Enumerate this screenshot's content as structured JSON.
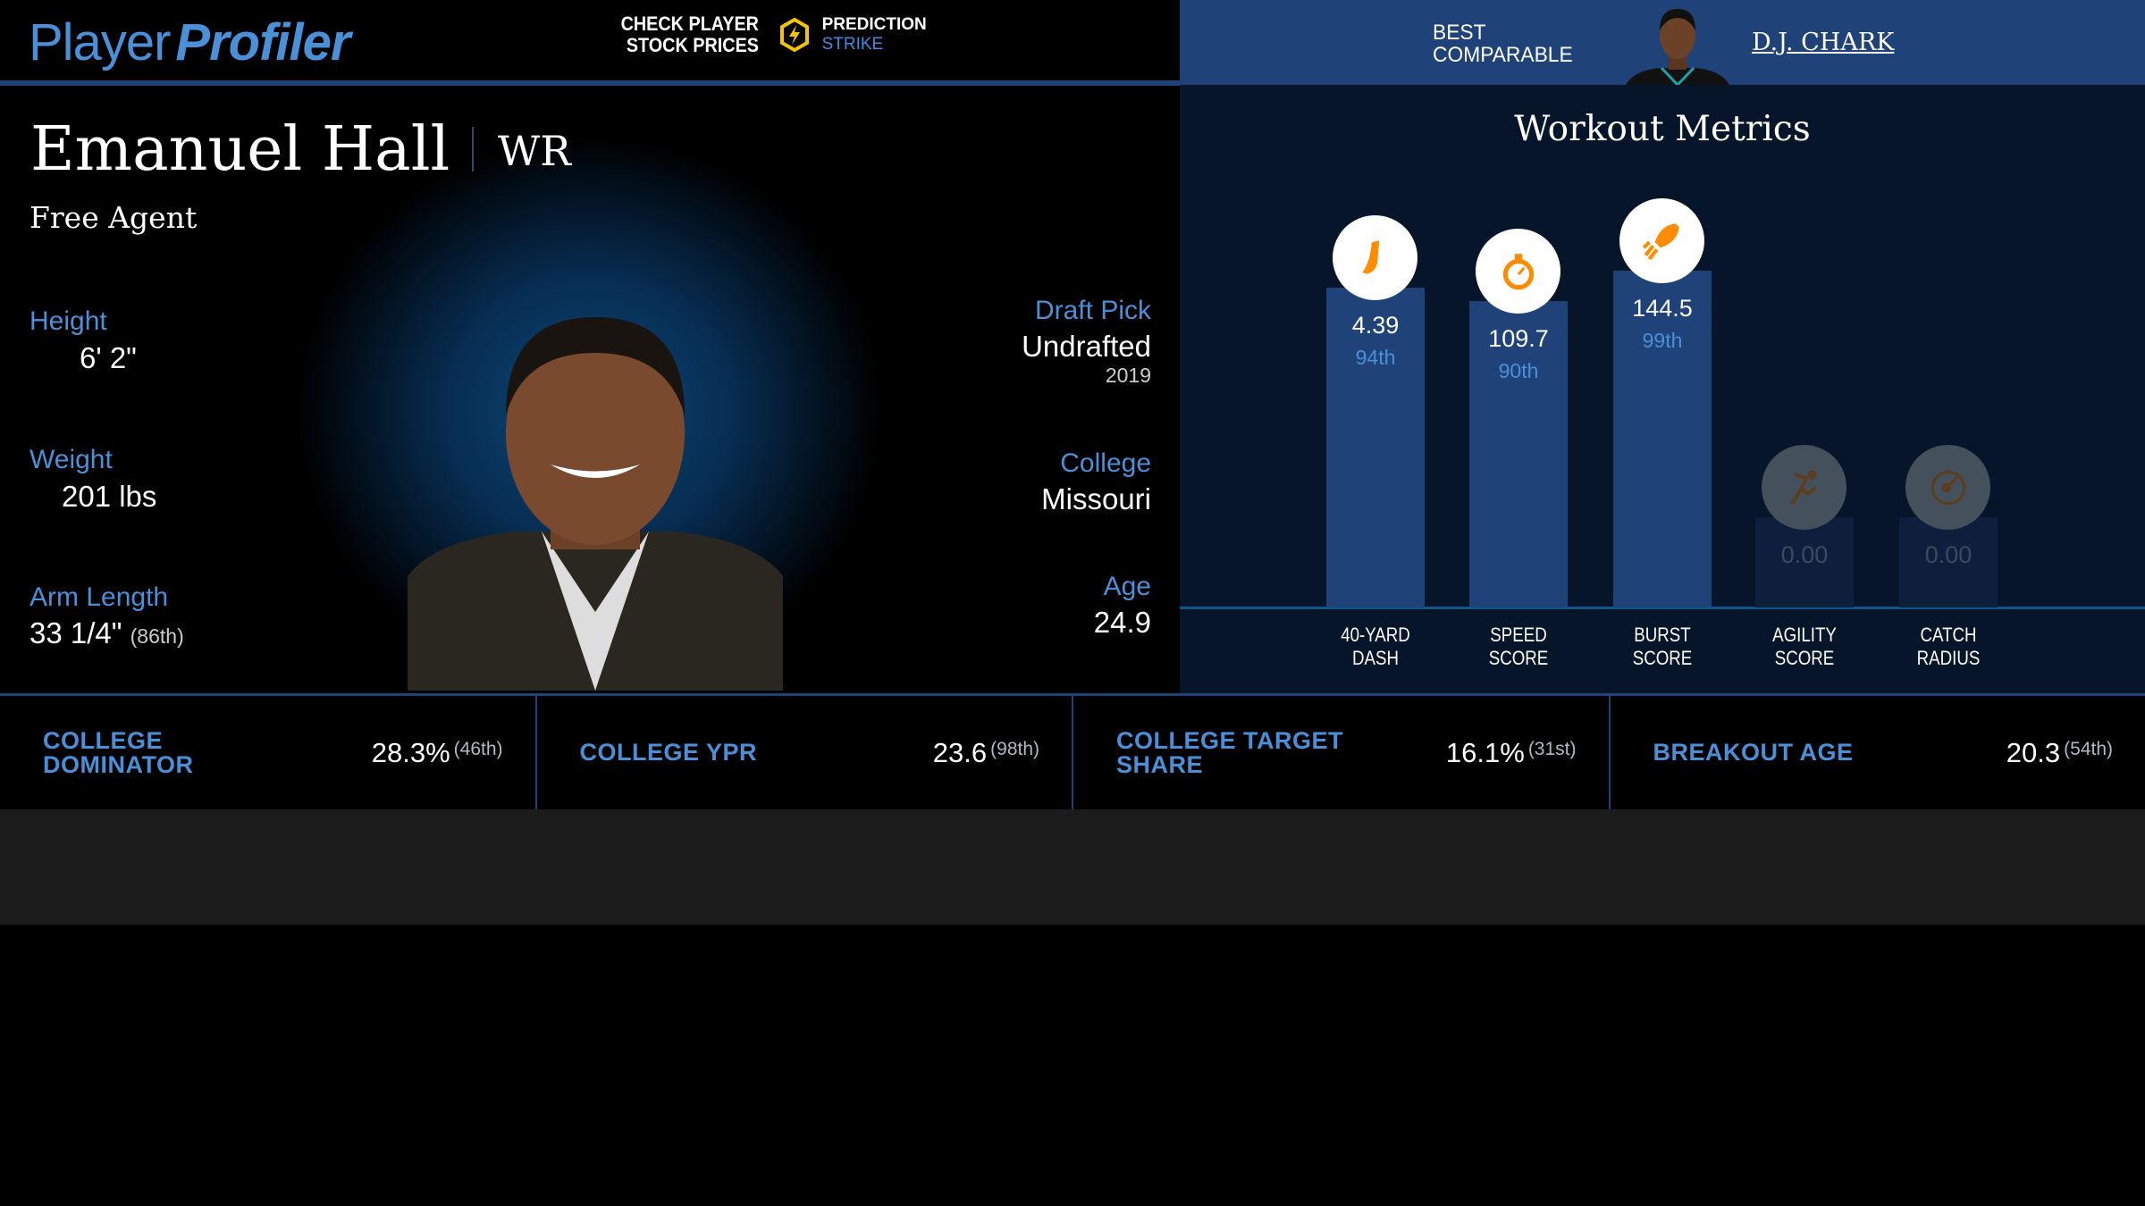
{
  "header": {
    "logo_player": "Player",
    "logo_profiler": "Profiler",
    "promo_line1": "CHECK PLAYER",
    "promo_line2": "STOCK PRICES",
    "promo_brand1": "PREDICTION",
    "promo_brand2": "STRIKE"
  },
  "player": {
    "name": "Emanuel Hall",
    "position": "WR",
    "team": "Free Agent",
    "height_label": "Height",
    "height": "6' 2\"",
    "weight_label": "Weight",
    "weight": "201 lbs",
    "arm_label": "Arm Length",
    "arm": "33 1/4\"",
    "arm_pct": "(86th)",
    "draft_label": "Draft Pick",
    "draft": "Undrafted",
    "draft_year": "2019",
    "college_label": "College",
    "college": "Missouri",
    "age_label": "Age",
    "age": "24.9"
  },
  "comparable": {
    "label1": "BEST",
    "label2": "COMPARABLE",
    "name": "D.J. CHARK"
  },
  "workout": {
    "title": "Workout Metrics",
    "metrics": [
      {
        "l1": "40-YARD",
        "l2": "DASH",
        "value": "4.39",
        "pct": "94th",
        "pct_num": 94,
        "icon": "shoe-icon",
        "active": true
      },
      {
        "l1": "SPEED",
        "l2": "SCORE",
        "value": "109.7",
        "pct": "90th",
        "pct_num": 90,
        "icon": "stopwatch-icon",
        "active": true
      },
      {
        "l1": "BURST",
        "l2": "SCORE",
        "value": "144.5",
        "pct": "99th",
        "pct_num": 99,
        "icon": "rocket-icon",
        "active": true
      },
      {
        "l1": "AGILITY",
        "l2": "SCORE",
        "value": "0.00",
        "pct": "",
        "pct_num": 0,
        "icon": "runner-icon",
        "active": false
      },
      {
        "l1": "CATCH",
        "l2": "RADIUS",
        "value": "0.00",
        "pct": "",
        "pct_num": 0,
        "icon": "radar-icon",
        "active": false
      }
    ]
  },
  "stats": [
    {
      "label": "COLLEGE DOMINATOR",
      "value": "28.3%",
      "pct": "(46th)"
    },
    {
      "label": "COLLEGE YPR",
      "value": "23.6",
      "pct": "(98th)"
    },
    {
      "label": "COLLEGE TARGET SHARE",
      "value": "16.1%",
      "pct": "(31st)"
    },
    {
      "label": "BREAKOUT AGE",
      "value": "20.3",
      "pct": "(54th)"
    }
  ],
  "colors": {
    "accent": "#4a90d9",
    "panel": "#1f4278",
    "icon": "#ff8c00"
  }
}
